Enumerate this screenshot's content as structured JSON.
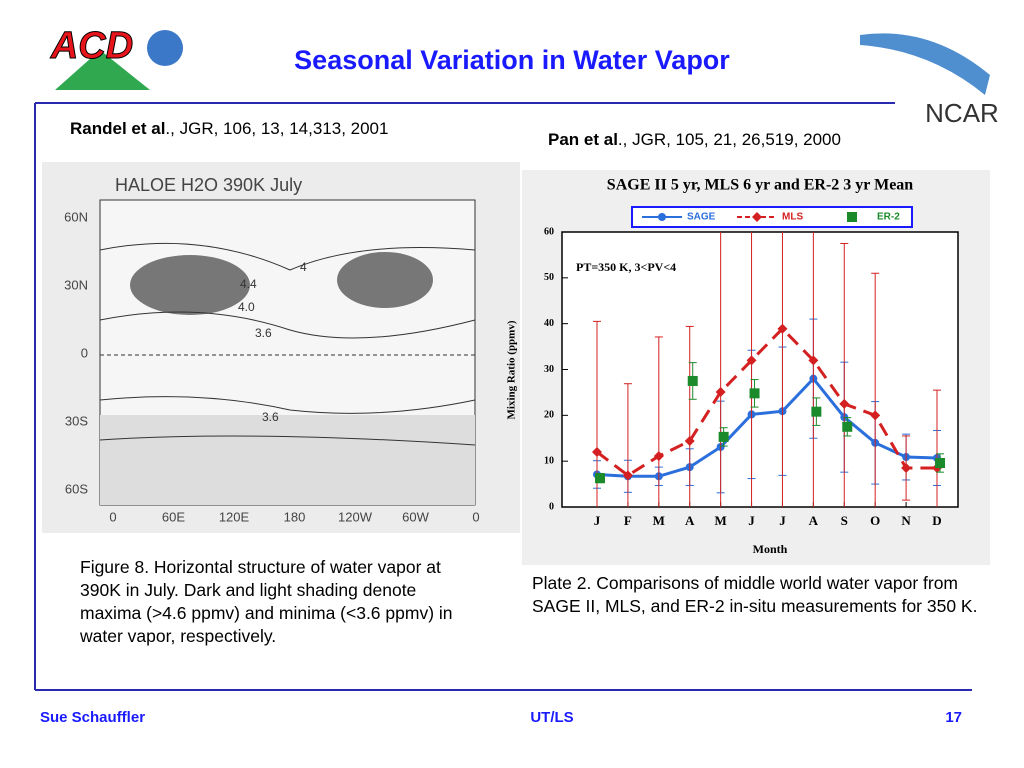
{
  "header": {
    "title": "Seasonal Variation in Water Vapor",
    "logo_left": "ACD",
    "logo_right": "NCAR"
  },
  "left": {
    "citation_bold": "Randel et al",
    "citation_rest": "., JGR, 106, 13, 14,313, 2001",
    "figure": {
      "title": "HALOE H2O 390K July",
      "yticks": [
        "60N",
        "30N",
        "0",
        "30S",
        "60S"
      ],
      "xticks": [
        "0",
        "60E",
        "120E",
        "180",
        "120W",
        "60W",
        "0"
      ],
      "contour_labels": [
        "4.4",
        "4.0",
        "3.6",
        "3.6",
        "4"
      ]
    },
    "caption": "Figure 8.  Horizontal structure of water vapor at 390K in July.  Dark and light shading denote maxima (>4.6 ppmv) and minima (<3.6 ppmv) in water vapor, respectively."
  },
  "right": {
    "citation_bold": "Pan et al",
    "citation_rest": "., JGR, 105, 21, 26,519, 2000",
    "caption": "Plate 2.  Comparisons of middle world water vapor from SAGE II, MLS, and ER-2 in-situ measurements for 350 K."
  },
  "chart_data": {
    "type": "line",
    "title": "SAGE II 5 yr, MLS 6 yr and ER-2 3 yr Mean",
    "annotation": "PT=350 K,  3<PV<4",
    "x_label": "Month",
    "y_label": "Mixing Ratio (ppmv)",
    "categories": [
      "J",
      "F",
      "M",
      "A",
      "M",
      "J",
      "J",
      "A",
      "S",
      "O",
      "N",
      "D"
    ],
    "ylim": [
      0,
      60
    ],
    "yticks": [
      0,
      10,
      20,
      30,
      40,
      50,
      60
    ],
    "series": [
      {
        "name": "SAGE",
        "color": "#2a6fdb",
        "style": "solid",
        "marker": "circle",
        "values": [
          7.1,
          6.7,
          6.7,
          8.7,
          13.1,
          20.2,
          20.9,
          28,
          19.6,
          14,
          10.9,
          10.7
        ],
        "errors": [
          3,
          3.5,
          2,
          4,
          10,
          14,
          14,
          13,
          12,
          9,
          5,
          6
        ]
      },
      {
        "name": "MLS",
        "color": "#d42020",
        "style": "dashed",
        "marker": "diamond",
        "values": [
          12,
          6.9,
          11.1,
          14.4,
          25.1,
          32,
          38.9,
          32,
          22.5,
          20,
          8.5,
          8.5
        ],
        "errors": [
          28.5,
          20,
          26,
          25,
          40,
          40,
          60,
          40,
          35,
          31,
          7,
          17
        ]
      },
      {
        "name": "ER-2",
        "color": "#1a8a2a",
        "style": "none",
        "marker": "square",
        "values": [
          6.3,
          null,
          null,
          27.5,
          15.3,
          24.8,
          null,
          20.8,
          17.5,
          null,
          null,
          9.6
        ],
        "errors": [
          1,
          null,
          null,
          4,
          2,
          3,
          null,
          3,
          2,
          null,
          null,
          2
        ]
      }
    ]
  },
  "footer": {
    "author": "Sue Schauffler",
    "topic": "UT/LS",
    "page": "17"
  }
}
